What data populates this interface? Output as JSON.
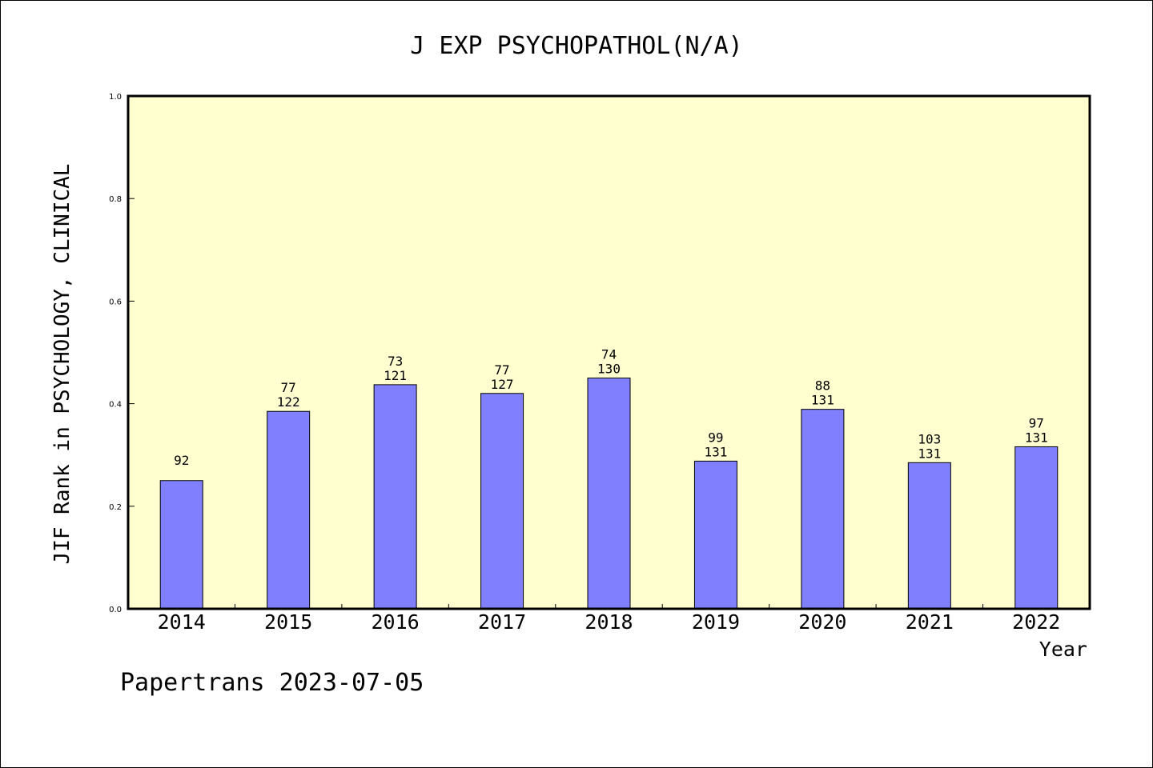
{
  "chart_data": {
    "type": "bar",
    "title": "J EXP PSYCHOPATHOL(N/A)",
    "xlabel": "Year",
    "ylabel": "JIF Rank in PSYCHOLOGY, CLINICAL",
    "ylim": [
      0,
      1.0
    ],
    "yticks": [
      "0.0",
      "0.2",
      "0.4",
      "0.6",
      "0.8",
      "1.0"
    ],
    "categories": [
      "2014",
      "2015",
      "2016",
      "2017",
      "2018",
      "2019",
      "2020",
      "2021",
      "2022"
    ],
    "values": [
      0.25,
      0.385,
      0.437,
      0.42,
      0.45,
      0.288,
      0.389,
      0.285,
      0.316
    ],
    "label_top": [
      "92",
      "77",
      "73",
      "77",
      "74",
      "99",
      "88",
      "103",
      "97"
    ],
    "label_bottom": [
      "",
      "122",
      "121",
      "127",
      "130",
      "131",
      "131",
      "131",
      "131"
    ],
    "bar_color": "#8080ff",
    "plot_background": "#ffffd0",
    "grid": false
  },
  "footer": "Papertrans 2023-07-05"
}
